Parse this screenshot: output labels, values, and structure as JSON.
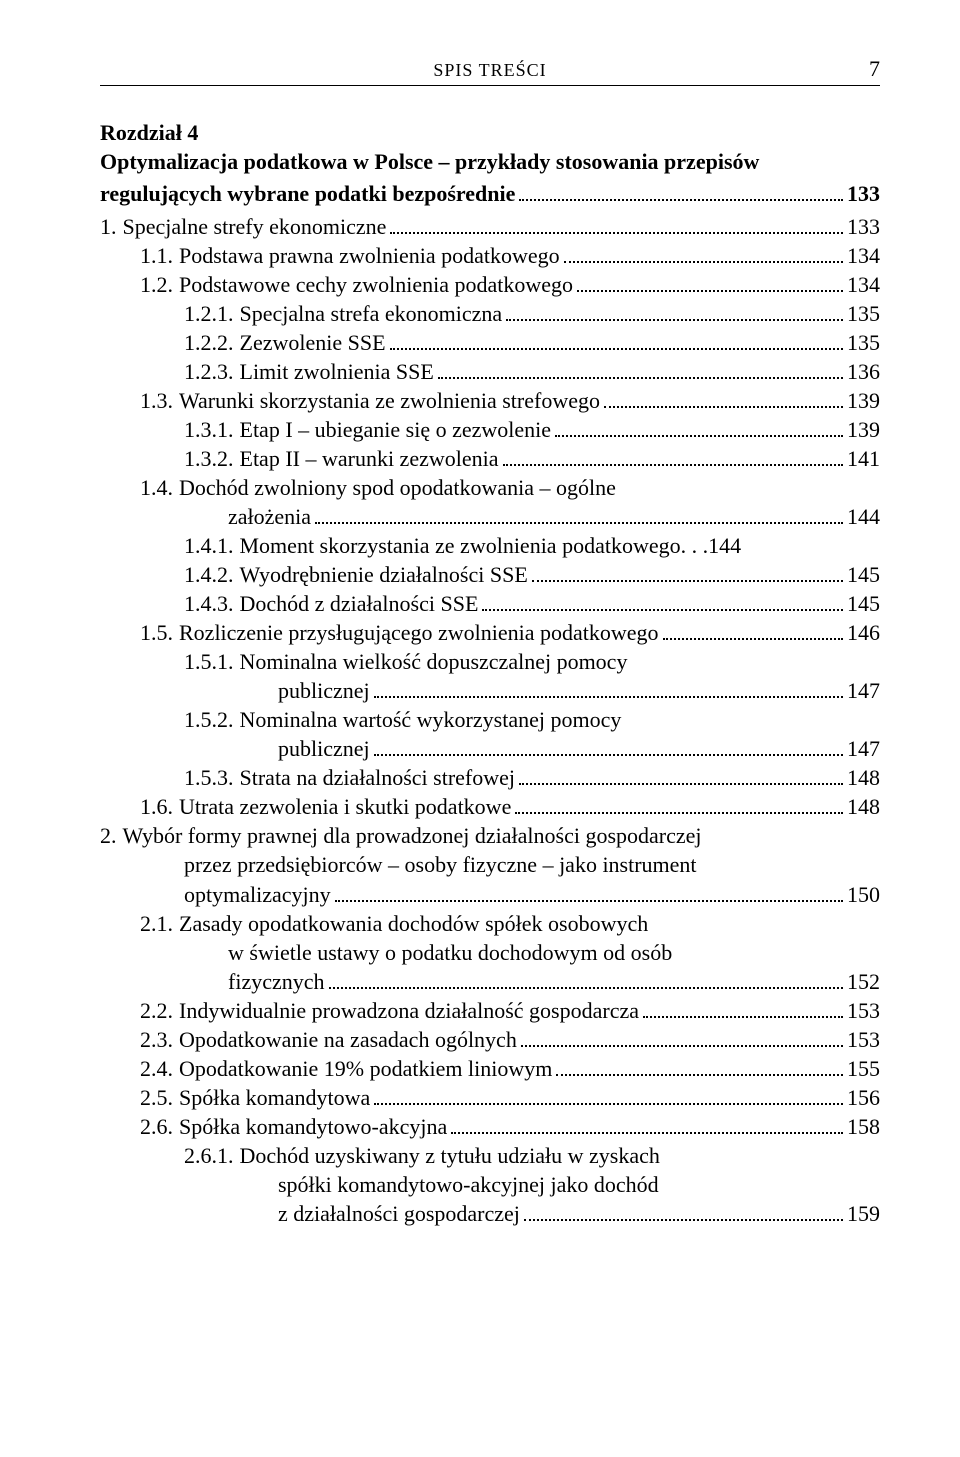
{
  "header": {
    "running_title": "SPIS TREŚCI",
    "page_number": "7"
  },
  "chapter": {
    "label": "Rozdział 4",
    "title_lines": [
      "Optymalizacja podatkowa w Polsce – przykłady stosowania przepisów",
      "regulujących wybrane podatki bezpośrednie"
    ],
    "title_page": "133"
  },
  "entries": [
    {
      "indent": 0,
      "num": "1.",
      "text": "Specjalne strefy ekonomiczne",
      "page": "133"
    },
    {
      "indent": 1,
      "num": "1.1.",
      "text": "Podstawa prawna zwolnienia podatkowego",
      "page": "134"
    },
    {
      "indent": 1,
      "num": "1.2.",
      "text": "Podstawowe cechy zwolnienia podatkowego",
      "page": "134"
    },
    {
      "indent": 2,
      "num": "1.2.1.",
      "text": "Specjalna strefa ekonomiczna",
      "page": "135"
    },
    {
      "indent": 2,
      "num": "1.2.2.",
      "text": "Zezwolenie SSE",
      "page": "135"
    },
    {
      "indent": 2,
      "num": "1.2.3.",
      "text": "Limit zwolnienia SSE",
      "page": "136"
    },
    {
      "indent": 1,
      "num": "1.3.",
      "text": "Warunki skorzystania ze zwolnienia strefowego",
      "page": "139"
    },
    {
      "indent": 2,
      "num": "1.3.1.",
      "text": "Etap I – ubieganie się o zezwolenie",
      "page": "139"
    },
    {
      "indent": 2,
      "num": "1.3.2.",
      "text": "Etap II – warunki zezwolenia",
      "page": "141"
    },
    {
      "indent": 1,
      "num": "1.4.",
      "text_lines": [
        "Dochód zwolniony spod opodatkowania – ogólne",
        "założenia"
      ],
      "page": "144"
    },
    {
      "indent": 2,
      "num": "1.4.1.",
      "text": "Moment skorzystania ze zwolnienia podatkowego",
      "page": "144",
      "leader_style": "space"
    },
    {
      "indent": 2,
      "num": "1.4.2.",
      "text": "Wyodrębnienie działalności SSE",
      "page": "145"
    },
    {
      "indent": 2,
      "num": "1.4.3.",
      "text": "Dochód z działalności SSE",
      "page": "145"
    },
    {
      "indent": 1,
      "num": "1.5.",
      "text": "Rozliczenie przysługującego zwolnienia podatkowego",
      "page": "146"
    },
    {
      "indent": 2,
      "num": "1.5.1.",
      "text_lines": [
        "Nominalna wielkość dopuszczalnej pomocy",
        "publicznej"
      ],
      "page": "147"
    },
    {
      "indent": 2,
      "num": "1.5.2.",
      "text_lines": [
        "Nominalna wartość wykorzystanej pomocy",
        "publicznej"
      ],
      "page": "147"
    },
    {
      "indent": 2,
      "num": "1.5.3.",
      "text": "Strata na działalności strefowej",
      "page": "148"
    },
    {
      "indent": 1,
      "num": "1.6.",
      "text": "Utrata zezwolenia i skutki podatkowe",
      "page": "148"
    },
    {
      "indent": 0,
      "num": "2.",
      "text_lines": [
        "Wybór formy prawnej dla prowadzonej działalności gospodarczej",
        "przez przedsiębiorców – osoby fizyczne – jako instrument",
        "optymalizacyjny"
      ],
      "page": "150"
    },
    {
      "indent": 1,
      "num": "2.1.",
      "text_lines": [
        "Zasady opodatkowania dochodów spółek osobowych",
        "w świetle ustawy o podatku dochodowym od osób",
        "fizycznych"
      ],
      "page": "152"
    },
    {
      "indent": 1,
      "num": "2.2.",
      "text": "Indywidualnie prowadzona działalność gospodarcza",
      "page": "153"
    },
    {
      "indent": 1,
      "num": "2.3.",
      "text": "Opodatkowanie na zasadach ogólnych",
      "page": "153"
    },
    {
      "indent": 1,
      "num": "2.4.",
      "text": "Opodatkowanie 19% podatkiem liniowym",
      "page": "155"
    },
    {
      "indent": 1,
      "num": "2.5.",
      "text": "Spółka komandytowa",
      "page": "156"
    },
    {
      "indent": 1,
      "num": "2.6.",
      "text": "Spółka komandytowo-akcyjna",
      "page": "158"
    },
    {
      "indent": 2,
      "num": "2.6.1.",
      "text_lines": [
        "Dochód uzyskiwany z tytułu udziału w zyskach",
        "spółki komandytowo-akcyjnej jako dochód",
        "z działalności gospodarczej"
      ],
      "page": "159"
    }
  ]
}
